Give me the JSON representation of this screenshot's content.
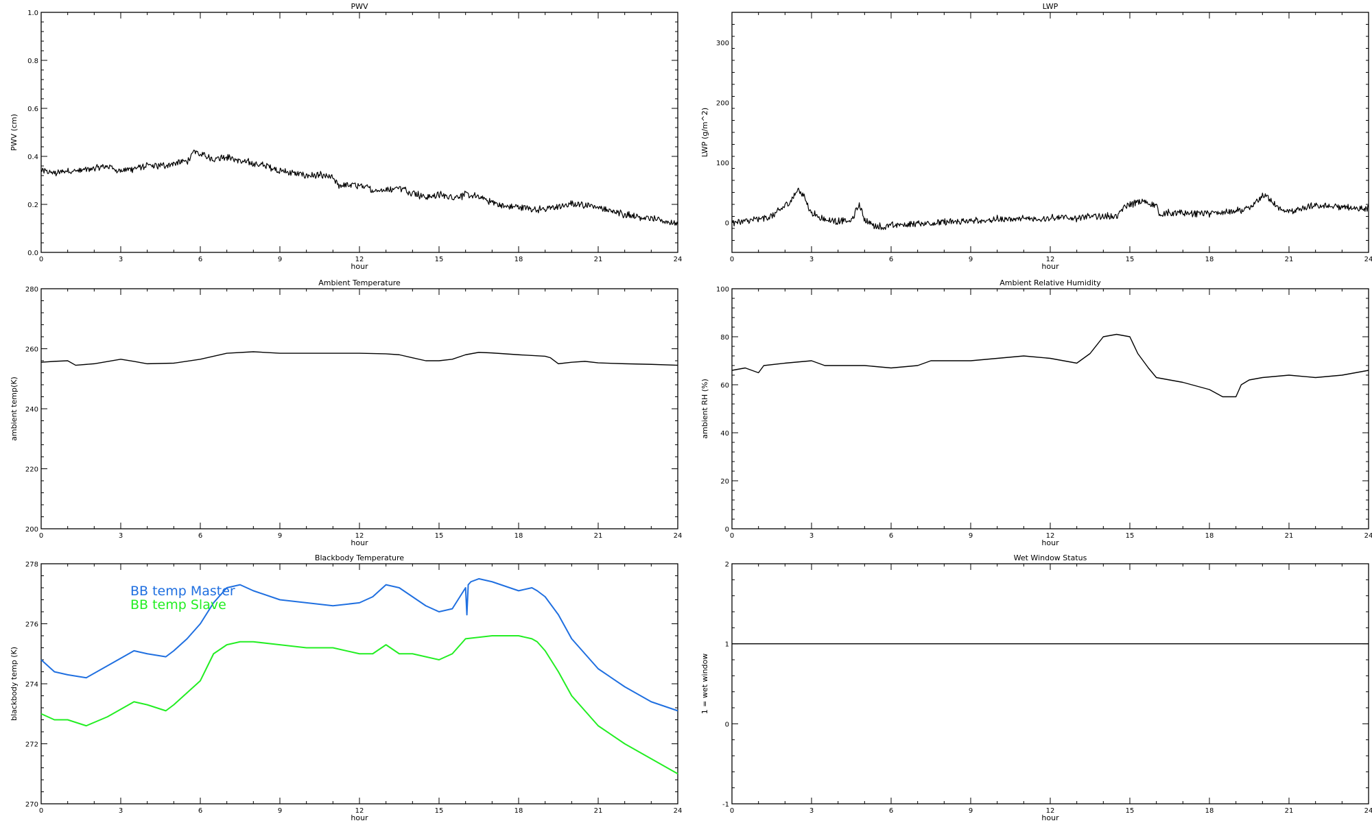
{
  "chart_data": [
    {
      "id": "pwv",
      "type": "line",
      "title": "PWV",
      "xlabel": "hour",
      "ylabel": "PWV (cm)",
      "xlim": [
        0,
        24
      ],
      "ylim": [
        0.0,
        1.0
      ],
      "xticks": [
        "0",
        "3",
        "6",
        "9",
        "12",
        "15",
        "18",
        "21",
        "24"
      ],
      "yticks": [
        "0.0",
        "0.2",
        "0.4",
        "0.6",
        "0.8",
        "1.0"
      ],
      "noisy": true,
      "series": [
        {
          "color": "#000000",
          "x": [
            0,
            0.5,
            1,
            1.5,
            2,
            2.5,
            3,
            3.5,
            4,
            4.5,
            5,
            5.5,
            5.8,
            6,
            6.5,
            7,
            7.5,
            8,
            8.5,
            9,
            9.5,
            10,
            10.5,
            11,
            11.2,
            11.5,
            12,
            12.5,
            13,
            13.5,
            14,
            14.5,
            15,
            15.5,
            16,
            16.5,
            17,
            17.5,
            18,
            18.5,
            19,
            19.5,
            20,
            20.5,
            21,
            21.5,
            22,
            22.5,
            23,
            23.5,
            24
          ],
          "y": [
            0.34,
            0.33,
            0.34,
            0.34,
            0.35,
            0.36,
            0.34,
            0.35,
            0.36,
            0.36,
            0.37,
            0.38,
            0.42,
            0.41,
            0.39,
            0.4,
            0.38,
            0.37,
            0.36,
            0.34,
            0.33,
            0.32,
            0.32,
            0.31,
            0.28,
            0.28,
            0.28,
            0.26,
            0.26,
            0.27,
            0.25,
            0.23,
            0.24,
            0.23,
            0.24,
            0.23,
            0.21,
            0.19,
            0.19,
            0.18,
            0.18,
            0.19,
            0.2,
            0.2,
            0.19,
            0.17,
            0.16,
            0.15,
            0.14,
            0.13,
            0.12
          ]
        }
      ]
    },
    {
      "id": "lwp",
      "type": "line",
      "title": "LWP",
      "xlabel": "hour",
      "ylabel": "LWP (g/m^2)",
      "xlim": [
        0,
        24
      ],
      "ylim": [
        -50,
        350
      ],
      "xticks": [
        "0",
        "3",
        "6",
        "9",
        "12",
        "15",
        "18",
        "21",
        "24"
      ],
      "yticks": [
        "0",
        "100",
        "200",
        "300"
      ],
      "noisy": true,
      "series": [
        {
          "color": "#000000",
          "x": [
            0,
            0.5,
            1,
            1.5,
            1.8,
            2.2,
            2.5,
            2.7,
            3,
            3.5,
            4,
            4.5,
            4.8,
            5,
            5.3,
            5.8,
            6,
            7,
            8,
            9,
            10,
            11,
            12,
            13,
            14,
            14.5,
            14.8,
            15,
            15.5,
            16,
            16.1,
            17,
            18,
            19,
            19.5,
            19.8,
            20,
            20.3,
            20.6,
            21,
            21.5,
            22,
            23,
            23.5,
            24
          ],
          "y": [
            0,
            2,
            5,
            10,
            20,
            35,
            55,
            45,
            15,
            5,
            2,
            2,
            30,
            5,
            -5,
            -8,
            -5,
            -2,
            0,
            2,
            5,
            6,
            7,
            8,
            10,
            10,
            25,
            30,
            35,
            28,
            15,
            15,
            15,
            18,
            22,
            35,
            45,
            40,
            22,
            18,
            22,
            28,
            25,
            24,
            22
          ]
        }
      ]
    },
    {
      "id": "ambient-temp",
      "type": "line",
      "title": "Ambient Temperature",
      "xlabel": "hour",
      "ylabel": "ambient temp(K)",
      "xlim": [
        0,
        24
      ],
      "ylim": [
        200,
        280
      ],
      "xticks": [
        "0",
        "3",
        "6",
        "9",
        "12",
        "15",
        "18",
        "21",
        "24"
      ],
      "yticks": [
        "200",
        "220",
        "240",
        "260",
        "280"
      ],
      "noisy": false,
      "series": [
        {
          "color": "#000000",
          "x": [
            0,
            0.5,
            1,
            1.3,
            2,
            3,
            3.5,
            4,
            5,
            6,
            7,
            8,
            9,
            10,
            11,
            12,
            13,
            13.5,
            14,
            14.5,
            15,
            15.5,
            16,
            16.5,
            17,
            18,
            19,
            19.2,
            19.5,
            20,
            20.5,
            21,
            22,
            23,
            24
          ],
          "y": [
            255.5,
            255.8,
            256,
            254.5,
            255,
            256.5,
            255.8,
            255,
            255.2,
            256.5,
            258.5,
            259,
            258.5,
            258.5,
            258.5,
            258.5,
            258.3,
            258,
            257,
            256,
            256,
            256.5,
            258,
            258.8,
            258.6,
            258,
            257.5,
            257,
            255,
            255.5,
            255.8,
            255.3,
            255,
            254.8,
            254.5
          ]
        }
      ]
    },
    {
      "id": "ambient-rh",
      "type": "line",
      "title": "Ambient Relative Humidity",
      "xlabel": "hour",
      "ylabel": "ambient RH (%)",
      "xlim": [
        0,
        24
      ],
      "ylim": [
        0,
        100
      ],
      "xticks": [
        "0",
        "3",
        "6",
        "9",
        "12",
        "15",
        "18",
        "21",
        "24"
      ],
      "yticks": [
        "0",
        "20",
        "40",
        "60",
        "80",
        "100"
      ],
      "noisy": false,
      "series": [
        {
          "color": "#000000",
          "x": [
            0,
            0.5,
            1,
            1.2,
            2,
            3,
            3.5,
            4,
            5,
            6,
            7,
            7.5,
            8,
            9,
            10,
            11,
            12,
            13,
            13.5,
            14,
            14.5,
            15,
            15.3,
            15.7,
            16,
            16.5,
            17,
            18,
            18.5,
            19,
            19.2,
            19.5,
            20,
            21,
            22,
            23,
            24
          ],
          "y": [
            66,
            67,
            65,
            68,
            69,
            70,
            68,
            68,
            68,
            67,
            68,
            70,
            70,
            70,
            71,
            72,
            71,
            69,
            73,
            80,
            81,
            80,
            73,
            67,
            63,
            62,
            61,
            58,
            55,
            55,
            60,
            62,
            63,
            64,
            63,
            64,
            66
          ]
        }
      ]
    },
    {
      "id": "blackbody-temp",
      "type": "line",
      "title": "Blackbody Temperature",
      "xlabel": "hour",
      "ylabel": "blackbody temp (K)",
      "xlim": [
        0,
        24
      ],
      "ylim": [
        270,
        278
      ],
      "xticks": [
        "0",
        "3",
        "6",
        "9",
        "12",
        "15",
        "18",
        "21",
        "24"
      ],
      "yticks": [
        "270",
        "272",
        "274",
        "276",
        "278"
      ],
      "legend_placement": "top-left",
      "noisy": false,
      "series": [
        {
          "name": "BB temp Master",
          "color": "#1f6fe0",
          "x": [
            0,
            0.5,
            1,
            1.7,
            2.5,
            3.5,
            4,
            4.7,
            5,
            5.5,
            6,
            6.5,
            7,
            7.5,
            8,
            9,
            10,
            11,
            12,
            12.5,
            13,
            13.5,
            14,
            14.5,
            15,
            15.5,
            16,
            16.05,
            16.1,
            16.2,
            16.5,
            17,
            18,
            18.5,
            18.7,
            19,
            19.5,
            20,
            21,
            22,
            23,
            24
          ],
          "y": [
            274.8,
            274.4,
            274.3,
            274.2,
            274.6,
            275.1,
            275.0,
            274.9,
            275.1,
            275.5,
            276,
            276.7,
            277.2,
            277.3,
            277.1,
            276.8,
            276.7,
            276.6,
            276.7,
            276.9,
            277.3,
            277.2,
            276.9,
            276.6,
            276.4,
            276.5,
            277.2,
            276.3,
            277.3,
            277.4,
            277.5,
            277.4,
            277.1,
            277.2,
            277.1,
            276.9,
            276.3,
            275.5,
            274.5,
            273.9,
            273.4,
            273.1
          ]
        },
        {
          "name": "BB temp Slave",
          "color": "#22ee22",
          "x": [
            0,
            0.5,
            1,
            1.7,
            2.5,
            3.5,
            4,
            4.7,
            5,
            5.5,
            6,
            6.5,
            7,
            7.5,
            8,
            9,
            10,
            11,
            12,
            12.5,
            13,
            13.5,
            14,
            14.5,
            15,
            15.5,
            16,
            17,
            18,
            18.5,
            18.7,
            19,
            19.5,
            20,
            21,
            22,
            23,
            24
          ],
          "y": [
            273.0,
            272.8,
            272.8,
            272.6,
            272.9,
            273.4,
            273.3,
            273.1,
            273.3,
            273.7,
            274.1,
            275.0,
            275.3,
            275.4,
            275.4,
            275.3,
            275.2,
            275.2,
            275.0,
            275.0,
            275.3,
            275.0,
            275.0,
            274.9,
            274.8,
            275.0,
            275.5,
            275.6,
            275.6,
            275.5,
            275.4,
            275.1,
            274.4,
            273.6,
            272.6,
            272.0,
            271.5,
            271.0
          ]
        }
      ]
    },
    {
      "id": "wet-window",
      "type": "line",
      "title": "Wet Window Status",
      "xlabel": "hour",
      "ylabel": "1 = wet window",
      "xlim": [
        0,
        24
      ],
      "ylim": [
        -1,
        2
      ],
      "xticks": [
        "0",
        "3",
        "6",
        "9",
        "12",
        "15",
        "18",
        "21",
        "24"
      ],
      "yticks": [
        "-1",
        "0",
        "1",
        "2"
      ],
      "noisy": false,
      "series": [
        {
          "color": "#000000",
          "x": [
            0,
            24
          ],
          "y": [
            1,
            1
          ]
        }
      ]
    }
  ]
}
